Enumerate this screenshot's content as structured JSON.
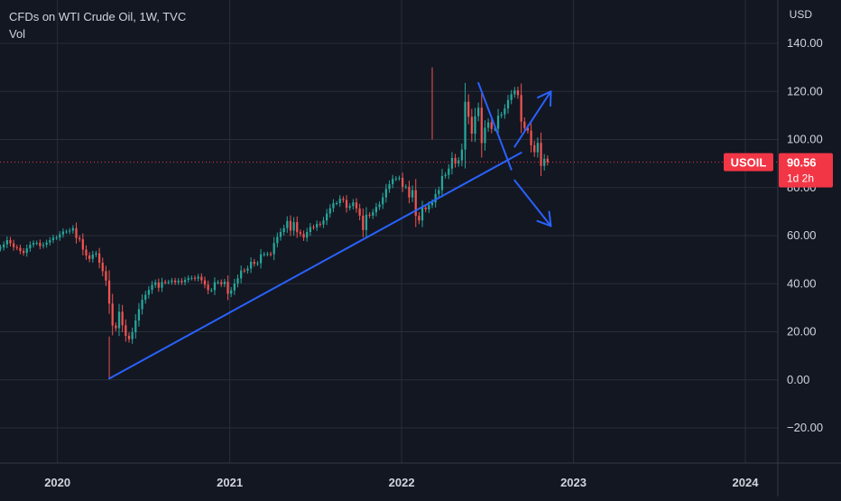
{
  "header": {
    "symbol_title": "CFDs on WTI Crude Oil, 1W, TVC",
    "volume_label": "Vol",
    "currency": "USD"
  },
  "price_badge": {
    "ticker": "USOIL",
    "price": "90.56",
    "countdown": "1d 2h",
    "color": "#f23645"
  },
  "colors": {
    "background": "#131722",
    "grid": "#2a2e39",
    "up": "#26a69a",
    "down": "#ef5350",
    "drawing": "#2962ff",
    "last_price_line": "#f23645",
    "text": "#d1d4dc"
  },
  "chart_data": {
    "type": "candlestick",
    "title": "CFDs on WTI Crude Oil, 1W, TVC",
    "ylabel": "USD",
    "xlabel": "",
    "ylim": [
      -30,
      150
    ],
    "y_ticks": [
      "140.00",
      "120.00",
      "100.00",
      "80.00",
      "60.00",
      "40.00",
      "20.00",
      "0.00",
      "−20.00"
    ],
    "y_tick_values": [
      140,
      120,
      100,
      80,
      60,
      40,
      20,
      0,
      -20
    ],
    "x_ticks": [
      "2020",
      "2021",
      "2022",
      "2023",
      "2024"
    ],
    "x_tick_dates": [
      "2020-01-01",
      "2021-01-01",
      "2022-01-01",
      "2023-01-01",
      "2024-01-01"
    ],
    "x_range": [
      "2019-09-01",
      "2024-03-10"
    ],
    "grid": true,
    "last_price": 90.56,
    "close_series": {
      "start": "2019-09-02",
      "interval_days": 7,
      "values": [
        55.1,
        56.3,
        58.1,
        56.8,
        55.2,
        54.9,
        53.6,
        52.8,
        54.7,
        56.2,
        56.9,
        57.0,
        55.7,
        56.2,
        57.1,
        58.1,
        59.1,
        59.2,
        60.5,
        61.7,
        61.7,
        62.1,
        63.1,
        59.0,
        58.5,
        54.2,
        51.7,
        50.3,
        52.1,
        52.6,
        48.7,
        45.2,
        41.3,
        31.7,
        22.6,
        21.5,
        28.3,
        22.7,
        18.3,
        16.9,
        19.8,
        24.7,
        29.4,
        33.3,
        35.4,
        37.4,
        39.5,
        40.5,
        38.3,
        40.7,
        40.6,
        40.7,
        41.3,
        40.6,
        41.2,
        40.6,
        41.6,
        42.3,
        42.4,
        42.1,
        42.9,
        41.4,
        39.6,
        37.3,
        37.3,
        40.6,
        40.6,
        39.8,
        40.8,
        35.8,
        37.2,
        40.1,
        42.2,
        45.5,
        45.4,
        46.3,
        49.1,
        48.3,
        48.5,
        52.2,
        52.3,
        52.4,
        52.3,
        56.9,
        59.5,
        61.5,
        63.1,
        66.1,
        62.1,
        65.6,
        61.4,
        60.7,
        59.2,
        61.5,
        63.6,
        63.4,
        64.9,
        64.6,
        66.3,
        69.2,
        71.4,
        73.5,
        73.5,
        75.3,
        74.8,
        71.6,
        72.3,
        73.8,
        71.3,
        68.3,
        62.3,
        68.7,
        68.3,
        69.7,
        71.9,
        73.0,
        75.9,
        79.4,
        81.4,
        83.6,
        83.8,
        84.0,
        80.3,
        80.4,
        75.9,
        78.9,
        68.2,
        66.3,
        71.7,
        70.9,
        72.7,
        73.8,
        77.3,
        78.9,
        84.8,
        85.3,
        87.9,
        92.3,
        90.0,
        91.3,
        95.8,
        115.7,
        109.4,
        102.4,
        109.7,
        113.2,
        98.5,
        104.9,
        107.1,
        104.4,
        104.5,
        109.9,
        110.4,
        112.9,
        116.4,
        118.8,
        120.4,
        118.5,
        107.4,
        104.8,
        103.7,
        97.6,
        94.7,
        98.6,
        89.0,
        92.0,
        90.56
      ]
    },
    "drawings": [
      {
        "kind": "trendline",
        "from": [
          "2020-04-20",
          0.5
        ],
        "to": [
          "2022-09-12",
          94.5
        ]
      },
      {
        "kind": "trendline",
        "from": [
          "2022-06-13",
          123.5
        ],
        "to": [
          "2022-08-22",
          87.5
        ]
      },
      {
        "kind": "arrow",
        "from": [
          "2022-08-29",
          97.0
        ],
        "to": [
          "2022-11-14",
          120.0
        ]
      },
      {
        "kind": "arrow",
        "from": [
          "2022-08-29",
          83.0
        ],
        "to": [
          "2022-11-14",
          64.0
        ]
      }
    ]
  }
}
